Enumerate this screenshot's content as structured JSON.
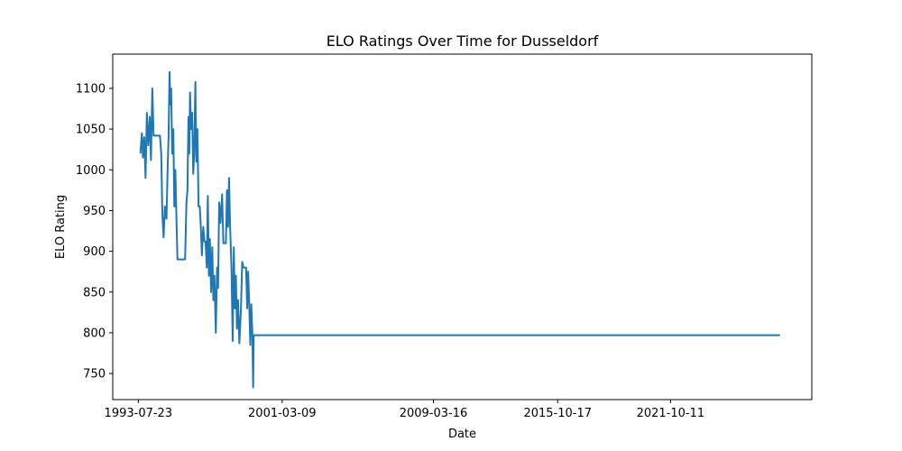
{
  "chart_data": {
    "type": "line",
    "title": "ELO Ratings Over Time for Dusseldorf",
    "xlabel": "Date",
    "ylabel": "ELO Rating",
    "x_scale": "date",
    "xlim": [
      "1992-03-15",
      "2029-04-08"
    ],
    "ylim": [
      718,
      1142
    ],
    "x_ticks": [
      "1993-07-23",
      "2001-03-09",
      "2009-03-16",
      "2015-10-17",
      "2021-10-11"
    ],
    "y_ticks": [
      750,
      800,
      850,
      900,
      950,
      1000,
      1050,
      1100
    ],
    "grid": false,
    "legend": "none",
    "series": [
      {
        "color": "#1f77b4",
        "points": [
          [
            "1993-09-01",
            1020
          ],
          [
            "1993-10-01",
            1045
          ],
          [
            "1993-10-20",
            1015
          ],
          [
            "1993-11-15",
            1040
          ],
          [
            "1993-12-10",
            990
          ],
          [
            "1994-01-05",
            1070
          ],
          [
            "1994-02-01",
            1030
          ],
          [
            "1994-03-01",
            1065
          ],
          [
            "1994-03-25",
            1012
          ],
          [
            "1994-04-20",
            1100
          ],
          [
            "1994-05-15",
            1042
          ],
          [
            "1994-06-20",
            1042
          ],
          [
            "1994-08-01",
            1042
          ],
          [
            "1994-09-15",
            1042
          ],
          [
            "1994-10-10",
            1020
          ],
          [
            "1994-11-01",
            945
          ],
          [
            "1994-11-25",
            917
          ],
          [
            "1994-12-20",
            955
          ],
          [
            "1995-01-20",
            940
          ],
          [
            "1995-02-10",
            1000
          ],
          [
            "1995-03-01",
            1040
          ],
          [
            "1995-03-20",
            1120
          ],
          [
            "1995-04-05",
            1080
          ],
          [
            "1995-04-20",
            1100
          ],
          [
            "1995-05-10",
            1020
          ],
          [
            "1995-06-01",
            1050
          ],
          [
            "1995-06-20",
            955
          ],
          [
            "1995-07-10",
            1000
          ],
          [
            "1995-08-01",
            940
          ],
          [
            "1995-08-20",
            890
          ],
          [
            "1995-10-01",
            890
          ],
          [
            "1995-12-01",
            890
          ],
          [
            "1996-01-15",
            890
          ],
          [
            "1996-02-10",
            960
          ],
          [
            "1996-03-01",
            975
          ],
          [
            "1996-03-20",
            1065
          ],
          [
            "1996-04-05",
            1020
          ],
          [
            "1996-04-20",
            1095
          ],
          [
            "1996-05-10",
            1050
          ],
          [
            "1996-06-01",
            1070
          ],
          [
            "1996-06-20",
            995
          ],
          [
            "1996-07-10",
            1020
          ],
          [
            "1996-08-01",
            1108
          ],
          [
            "1996-08-20",
            1010
          ],
          [
            "1996-09-10",
            1050
          ],
          [
            "1996-10-01",
            955
          ],
          [
            "1996-10-25",
            955
          ],
          [
            "1996-11-15",
            930
          ],
          [
            "1996-12-05",
            895
          ],
          [
            "1997-01-01",
            930
          ],
          [
            "1997-01-25",
            912
          ],
          [
            "1997-02-15",
            912
          ],
          [
            "1997-03-10",
            880
          ],
          [
            "1997-03-30",
            968
          ],
          [
            "1997-04-20",
            870
          ],
          [
            "1997-05-10",
            915
          ],
          [
            "1997-06-01",
            850
          ],
          [
            "1997-06-25",
            905
          ],
          [
            "1997-07-15",
            840
          ],
          [
            "1997-08-05",
            870
          ],
          [
            "1997-09-01",
            800
          ],
          [
            "1997-09-25",
            880
          ],
          [
            "1997-10-15",
            855
          ],
          [
            "1997-11-05",
            960
          ],
          [
            "1997-12-01",
            935
          ],
          [
            "1998-01-01",
            970
          ],
          [
            "1998-01-25",
            910
          ],
          [
            "1998-02-20",
            910
          ],
          [
            "1998-03-15",
            910
          ],
          [
            "1998-04-05",
            975
          ],
          [
            "1998-04-25",
            930
          ],
          [
            "1998-05-15",
            990
          ],
          [
            "1998-06-05",
            930
          ],
          [
            "1998-07-01",
            880
          ],
          [
            "1998-07-25",
            790
          ],
          [
            "1998-08-15",
            905
          ],
          [
            "1998-09-05",
            830
          ],
          [
            "1998-09-25",
            870
          ],
          [
            "1998-10-15",
            805
          ],
          [
            "1998-11-05",
            840
          ],
          [
            "1998-12-01",
            787
          ],
          [
            "1999-01-01",
            830
          ],
          [
            "1999-01-25",
            887
          ],
          [
            "1999-02-20",
            880
          ],
          [
            "1999-03-15",
            880
          ],
          [
            "1999-04-10",
            880
          ],
          [
            "1999-05-01",
            830
          ],
          [
            "1999-05-20",
            875
          ],
          [
            "1999-06-10",
            835
          ],
          [
            "1999-07-01",
            785
          ],
          [
            "1999-07-20",
            835
          ],
          [
            "1999-08-10",
            800
          ],
          [
            "1999-08-25",
            733
          ],
          [
            "1999-09-05",
            797
          ],
          [
            "2005-01-01",
            797
          ],
          [
            "2015-01-01",
            797
          ],
          [
            "2026-01-01",
            797
          ],
          [
            "2027-08-01",
            797
          ]
        ]
      }
    ]
  }
}
